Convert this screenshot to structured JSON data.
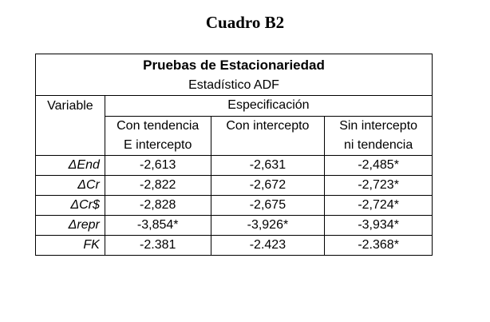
{
  "title": "Cuadro B2",
  "table": {
    "title": "Pruebas de Estacionariedad",
    "subtitle": "Estadístico ADF",
    "variable_header": "Variable",
    "spec_header": "Especificación",
    "columns": [
      [
        "Con tendencia",
        "E intercepto"
      ],
      [
        "Con intercepto"
      ],
      [
        "Sin intercepto",
        "ni tendencia"
      ]
    ],
    "rows": [
      [
        "ΔEnd",
        "-2,613",
        "-2,631",
        "-2,485*"
      ],
      [
        "ΔCr",
        "-2,822",
        "-2,672",
        "-2,723*"
      ],
      [
        "ΔCr$",
        "-2,828",
        "-2,675",
        "-2,724*"
      ],
      [
        "Δrepr",
        "-3,854*",
        "-3,926*",
        "-3,934*"
      ],
      [
        "FK",
        "-2.381",
        "-2.423",
        "-2.368*"
      ]
    ]
  }
}
